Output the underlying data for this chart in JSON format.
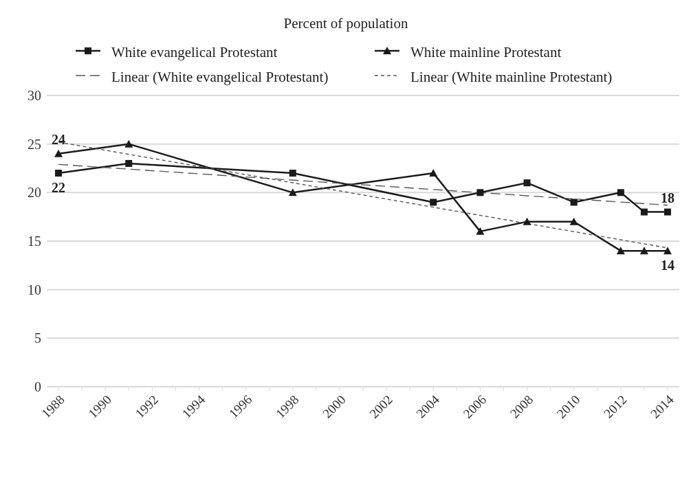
{
  "chart_data": {
    "type": "line",
    "title": "Percent of population",
    "xlim": [
      1987.5,
      2014.5
    ],
    "xticks": [
      {
        "value": 1988,
        "label": "1988"
      },
      {
        "value": 1989,
        "label": null
      },
      {
        "value": 1990,
        "label": "1990"
      },
      {
        "value": 1991,
        "label": null
      },
      {
        "value": 1992,
        "label": "1992"
      },
      {
        "value": 1993,
        "label": null
      },
      {
        "value": 1994,
        "label": "1994"
      },
      {
        "value": 1995,
        "label": null
      },
      {
        "value": 1996,
        "label": "1996"
      },
      {
        "value": 1997,
        "label": null
      },
      {
        "value": 1998,
        "label": "1998"
      },
      {
        "value": 1999,
        "label": null
      },
      {
        "value": 2000,
        "label": "2000"
      },
      {
        "value": 2001,
        "label": null
      },
      {
        "value": 2002,
        "label": "2002"
      },
      {
        "value": 2003,
        "label": null
      },
      {
        "value": 2004,
        "label": "2004"
      },
      {
        "value": 2005,
        "label": null
      },
      {
        "value": 2006,
        "label": "2006"
      },
      {
        "value": 2007,
        "label": null
      },
      {
        "value": 2008,
        "label": "2008"
      },
      {
        "value": 2009,
        "label": null
      },
      {
        "value": 2010,
        "label": "2010"
      },
      {
        "value": 2011,
        "label": null
      },
      {
        "value": 2012,
        "label": "2012"
      },
      {
        "value": 2013,
        "label": null
      },
      {
        "value": 2014,
        "label": "2014"
      }
    ],
    "ylim": [
      0,
      30
    ],
    "yticks": [
      0,
      5,
      10,
      15,
      20,
      25,
      30
    ],
    "grid": "y",
    "legend": "top",
    "series": [
      {
        "name": "White evangelical Protestant",
        "color": "#1a1a1a",
        "marker": "square",
        "line_style": "solid",
        "x": [
          1988,
          1991,
          1998,
          2004,
          2006,
          2008,
          2010,
          2012,
          2013,
          2014
        ],
        "values": [
          22,
          23,
          22,
          19,
          20,
          21,
          19,
          20,
          18,
          18
        ],
        "value_labels": [
          "22",
          null,
          null,
          null,
          null,
          null,
          null,
          null,
          null,
          "18"
        ]
      },
      {
        "name": "White mainline Protestant",
        "color": "#1a1a1a",
        "marker": "triangle",
        "line_style": "solid",
        "x": [
          1988,
          1991,
          1998,
          2004,
          2006,
          2008,
          2010,
          2012,
          2013,
          2014
        ],
        "values": [
          24,
          25,
          20,
          22,
          16,
          17,
          17,
          14,
          14,
          14
        ],
        "value_labels": [
          "24",
          null,
          null,
          null,
          null,
          null,
          null,
          null,
          null,
          "14"
        ]
      },
      {
        "name": "Linear (White evangelical Protestant)",
        "color": "#555555",
        "marker": "none",
        "line_style": "dashed",
        "x": [
          1988,
          2014
        ],
        "values": [
          22.9,
          18.7
        ]
      },
      {
        "name": "Linear (White mainline Protestant)",
        "color": "#555555",
        "marker": "none",
        "line_style": "dotted",
        "x": [
          1988,
          2014
        ],
        "values": [
          25.2,
          14.3
        ]
      }
    ]
  }
}
